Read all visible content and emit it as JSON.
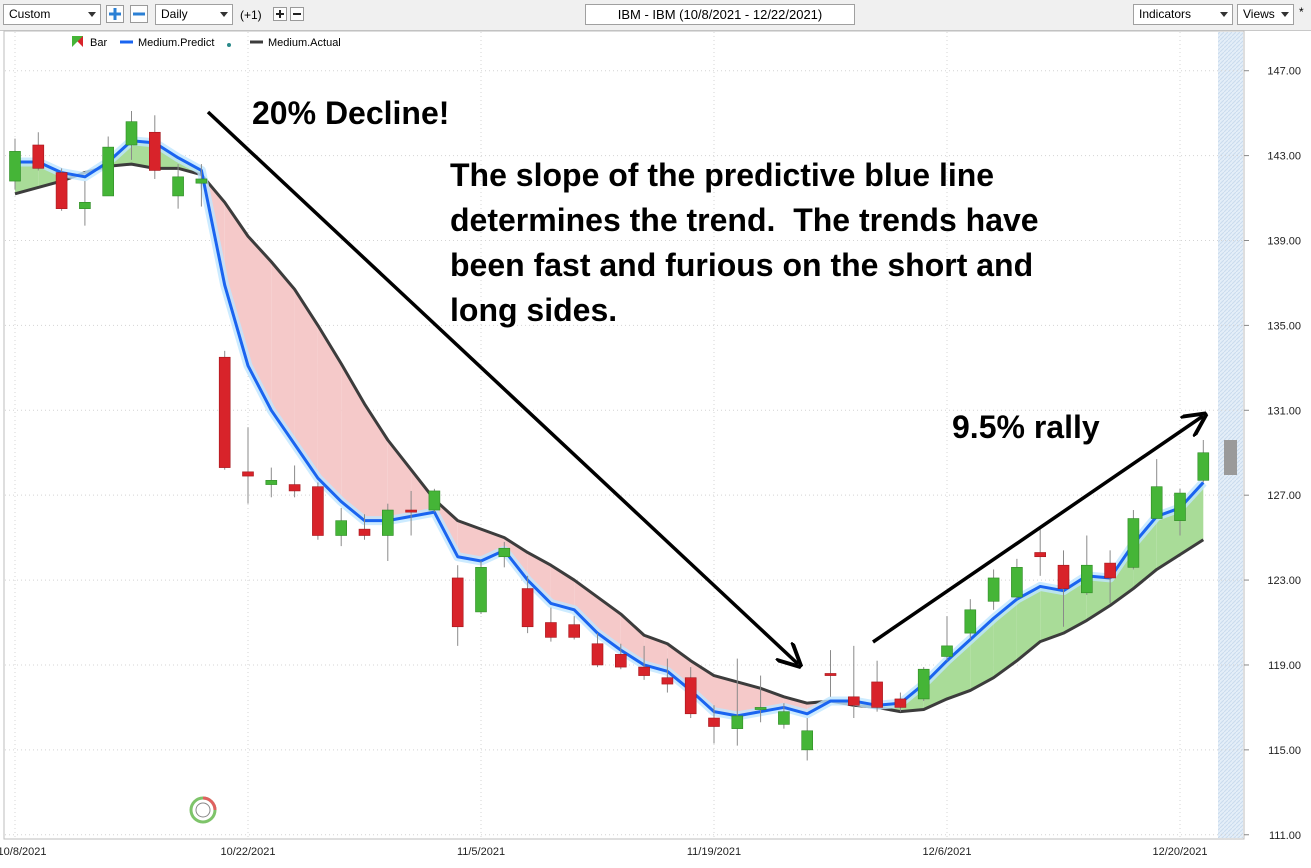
{
  "toolbar": {
    "range_select": "Custom",
    "interval_select": "Daily",
    "offset": "(+1)",
    "indicators": "Indicators",
    "views": "Views",
    "star": "*"
  },
  "chart_data": {
    "type": "candlestick",
    "title": "IBM - IBM (10/8/2021 - 12/22/2021)",
    "categories": [
      "10/8/2021",
      null,
      null,
      null,
      null,
      null,
      null,
      null,
      null,
      null,
      "10/22/2021",
      null,
      null,
      null,
      null,
      null,
      null,
      null,
      null,
      null,
      "11/5/2021",
      null,
      null,
      null,
      null,
      null,
      null,
      null,
      null,
      null,
      "11/19/2021",
      null,
      null,
      null,
      null,
      null,
      null,
      null,
      null,
      null,
      "12/6/2021",
      null,
      null,
      null,
      null,
      null,
      null,
      null,
      null,
      null,
      "12/20/2021",
      null
    ],
    "candles": {
      "name": "Bar",
      "up_color": "#45b537",
      "down_color": "#d8232a",
      "open": [
        141.8,
        143.5,
        142.2,
        140.5,
        141.1,
        143.5,
        144.1,
        141.1,
        141.7,
        133.5,
        128.1,
        127.5,
        127.5,
        127.4,
        125.1,
        125.4,
        125.1,
        126.3,
        126.3,
        123.1,
        121.5,
        124.1,
        122.6,
        121.0,
        120.9,
        120.0,
        119.5,
        118.9,
        118.4,
        118.4,
        116.5,
        116.0,
        116.9,
        116.2,
        115.0,
        118.6,
        117.5,
        118.2,
        117.4,
        117.4,
        119.4,
        120.5,
        122.0,
        122.2,
        124.3,
        123.7,
        122.4,
        123.8,
        123.6,
        125.9,
        125.8,
        127.7
      ],
      "close": [
        143.2,
        142.4,
        140.5,
        140.8,
        143.4,
        144.6,
        142.3,
        142.0,
        141.9,
        128.3,
        127.9,
        127.7,
        127.2,
        125.1,
        125.8,
        125.1,
        126.3,
        126.2,
        127.2,
        120.8,
        123.6,
        124.5,
        120.8,
        120.3,
        120.3,
        119.0,
        118.9,
        118.5,
        118.1,
        116.7,
        116.1,
        116.6,
        117.0,
        116.8,
        115.9,
        118.5,
        117.1,
        117.0,
        117.0,
        118.8,
        119.9,
        121.6,
        123.1,
        123.6,
        124.1,
        122.6,
        123.7,
        123.1,
        125.9,
        127.4,
        127.1,
        129.0
      ],
      "high": [
        143.8,
        144.1,
        142.4,
        141.8,
        143.9,
        145.1,
        144.9,
        142.6,
        142.6,
        133.8,
        130.2,
        128.3,
        128.4,
        127.6,
        126.4,
        126.1,
        126.6,
        127.2,
        127.3,
        123.7,
        123.9,
        124.8,
        123.2,
        121.7,
        121.3,
        120.5,
        120.0,
        119.9,
        119.3,
        118.9,
        117.1,
        119.3,
        118.5,
        117.2,
        116.5,
        119.7,
        119.9,
        119.2,
        117.7,
        118.9,
        121.3,
        122.1,
        123.5,
        124.0,
        125.4,
        124.4,
        125.1,
        124.4,
        126.3,
        128.7,
        127.3,
        129.6
      ],
      "low": [
        141.4,
        142.3,
        140.4,
        139.7,
        141.1,
        142.8,
        141.9,
        140.5,
        140.6,
        128.2,
        126.6,
        126.9,
        126.9,
        124.9,
        124.6,
        124.9,
        123.9,
        125.1,
        126.2,
        119.9,
        121.4,
        123.6,
        120.5,
        120.1,
        120.2,
        118.9,
        118.8,
        118.3,
        117.7,
        116.5,
        115.3,
        115.2,
        116.3,
        116.0,
        114.5,
        117.5,
        116.5,
        116.8,
        116.8,
        117.3,
        119.2,
        120.2,
        121.6,
        122.1,
        123.2,
        120.8,
        122.3,
        121.9,
        123.5,
        126.1,
        125.1,
        127.6
      ]
    },
    "series": [
      {
        "name": "Medium.Predict",
        "color": "#1a64f0",
        "values": [
          142.7,
          142.7,
          142.2,
          142.0,
          142.7,
          143.7,
          143.6,
          142.9,
          142.3,
          136.9,
          133.1,
          131.0,
          129.4,
          127.8,
          126.7,
          125.8,
          125.8,
          126.0,
          126.2,
          124.1,
          123.9,
          124.4,
          123.0,
          121.9,
          121.6,
          120.5,
          119.7,
          119.0,
          118.7,
          117.8,
          116.8,
          116.6,
          116.8,
          117.0,
          116.7,
          117.3,
          117.3,
          117.1,
          117.2,
          118.1,
          119.2,
          120.2,
          121.2,
          122.1,
          122.7,
          122.5,
          123.2,
          123.1,
          124.7,
          126.0,
          126.4,
          127.6
        ]
      },
      {
        "name": "Medium.Actual",
        "color": "#3c3c3c",
        "values": [
          141.2,
          141.5,
          141.8,
          142.2,
          142.5,
          142.6,
          142.4,
          142.4,
          142.1,
          140.8,
          139.2,
          138.0,
          136.7,
          135.0,
          133.2,
          131.3,
          129.6,
          128.2,
          126.8,
          125.8,
          125.4,
          125.0,
          124.3,
          123.7,
          123.0,
          122.2,
          121.4,
          120.4,
          120.0,
          119.2,
          118.5,
          118.2,
          117.9,
          117.5,
          117.2,
          117.3,
          117.1,
          117.0,
          116.8,
          116.9,
          117.4,
          117.8,
          118.4,
          119.2,
          120.1,
          120.5,
          121.1,
          121.8,
          122.6,
          123.5,
          124.2,
          124.9
        ]
      }
    ],
    "ylim": [
      110.8,
      148.4
    ],
    "yticks": [
      {
        "value": 111,
        "label": "111.00"
      },
      {
        "value": 115,
        "label": "115.00"
      },
      {
        "value": 119,
        "label": "119.00"
      },
      {
        "value": 123,
        "label": "123.00"
      },
      {
        "value": 127,
        "label": "127.00"
      },
      {
        "value": 131,
        "label": "131.00"
      },
      {
        "value": 135,
        "label": "135.00"
      },
      {
        "value": 139,
        "label": "139.00"
      },
      {
        "value": 143,
        "label": "143.00"
      },
      {
        "value": 147,
        "label": "147.00"
      }
    ],
    "grid": true,
    "band_colors": {
      "above": "#a9dc98",
      "below": "#f5c9c9"
    },
    "decline_note": "20% Decline!",
    "note_lines": [
      "The slope of the predictive blue line",
      "determines the trend.  The trends have",
      "been fast and furious on the short and",
      "long sides."
    ],
    "rally_note": "9.5% rally"
  }
}
